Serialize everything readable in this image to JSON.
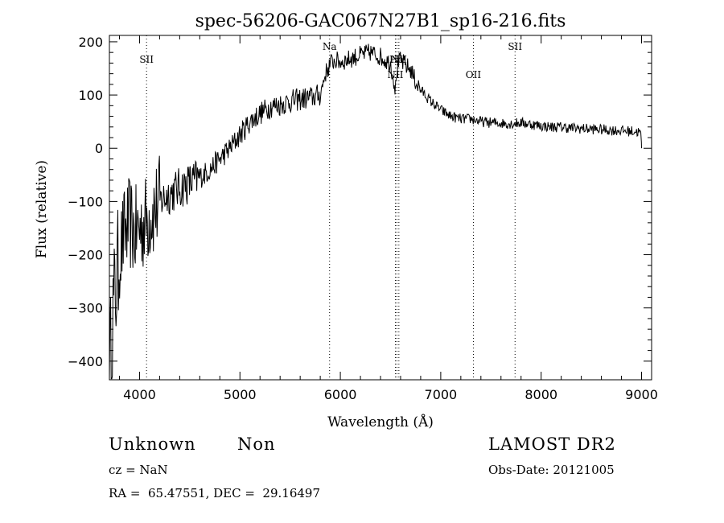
{
  "chart_data": {
    "type": "line",
    "title": "spec-56206-GAC067N27B1_sp16-216.fits",
    "xlabel": "Wavelength (Å)",
    "ylabel": "Flux (relative)",
    "xlim": [
      3700,
      9100
    ],
    "ylim": [
      -435,
      212
    ],
    "xticks": [
      4000,
      5000,
      6000,
      7000,
      8000,
      9000
    ],
    "yticks": [
      -400,
      -300,
      -200,
      -100,
      0,
      100,
      200
    ],
    "grid": false,
    "series": [
      {
        "x": [
          3700,
          3710,
          3720,
          3740,
          3760,
          3780,
          3800,
          3850,
          3900,
          3950,
          4000,
          4050,
          4100,
          4150,
          4200,
          4300,
          4400,
          4500,
          4600,
          4700,
          4800,
          4900,
          5000,
          5100,
          5200,
          5300,
          5400,
          5500,
          5600,
          5700,
          5800,
          5850,
          5880,
          5900,
          5950,
          6000,
          6100,
          6200,
          6300,
          6400,
          6450,
          6500,
          6550,
          6563,
          6580,
          6600,
          6650,
          6700,
          6750,
          6800,
          6900,
          7000,
          7100,
          7200,
          7300,
          7400,
          7500,
          7600,
          7700,
          7800,
          7900,
          8000,
          8100,
          8200,
          8300,
          8400,
          8500,
          8600,
          8700,
          8800,
          8900,
          8990,
          9000
        ],
        "y": [
          -420,
          -400,
          -340,
          -300,
          -270,
          -240,
          -200,
          -160,
          -140,
          -160,
          -150,
          -140,
          -125,
          -115,
          -100,
          -85,
          -75,
          -65,
          -55,
          -40,
          -20,
          0,
          25,
          50,
          65,
          78,
          82,
          88,
          92,
          95,
          100,
          140,
          150,
          160,
          165,
          162,
          168,
          175,
          180,
          172,
          165,
          160,
          110,
          150,
          160,
          165,
          155,
          148,
          125,
          110,
          88,
          72,
          60,
          55,
          55,
          50,
          48,
          47,
          46,
          48,
          45,
          42,
          40,
          40,
          38,
          37,
          36,
          35,
          34,
          33,
          32,
          30,
          0
        ]
      }
    ],
    "line_markers": [
      {
        "label": "SII",
        "x": 4070
      },
      {
        "label": "Na",
        "x": 5893
      },
      {
        "label": "NII",
        "x": 6548
      },
      {
        "label": "Hα",
        "x": 6563
      },
      {
        "label": "NII",
        "x": 6583
      },
      {
        "label": "OII",
        "x": 7325
      },
      {
        "label": "SII",
        "x": 7740
      }
    ]
  },
  "info": {
    "object_class": "Unknown",
    "object_subclass": "Non",
    "survey": "LAMOST DR2",
    "cz": "cz = NaN",
    "obs_date": "Obs-Date: 20121005",
    "coords": "RA =  65.47551, DEC =  29.16497"
  }
}
